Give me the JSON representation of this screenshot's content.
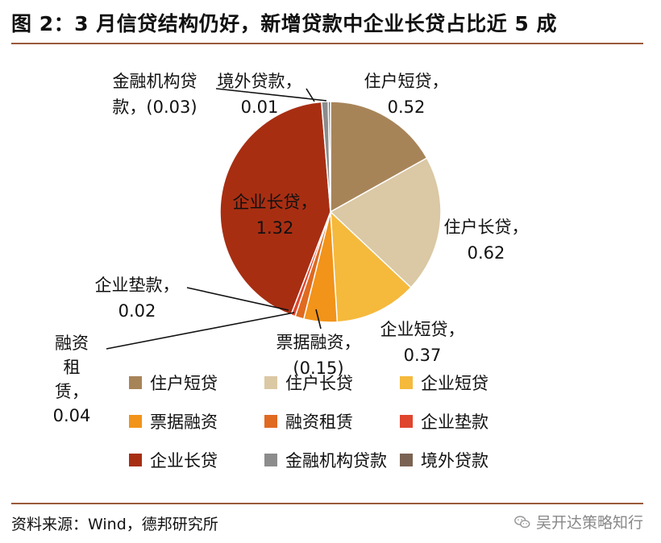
{
  "header": {
    "title": "图 2：3 月信贷结构仍好，新增贷款中企业长贷占比近 5 成"
  },
  "footer": {
    "source": "资料来源：Wind，德邦研究所",
    "watermark": "吴开达策略知行"
  },
  "chart_data": {
    "type": "pie",
    "title": "",
    "slices": [
      {
        "name": "住户短贷",
        "value": 0.52,
        "color": "#A78458"
      },
      {
        "name": "住户长贷",
        "value": 0.62,
        "color": "#DBC8A4"
      },
      {
        "name": "企业短贷",
        "value": 0.37,
        "color": "#F5B93C"
      },
      {
        "name": "票据融资",
        "value": -0.15,
        "color": "#F2931A"
      },
      {
        "name": "融资租赁",
        "value": 0.04,
        "color": "#E06A20"
      },
      {
        "name": "企业垫款",
        "value": 0.02,
        "color": "#E0452E"
      },
      {
        "name": "企业长贷",
        "value": 1.32,
        "color": "#A82E12"
      },
      {
        "name": "金融机构贷款",
        "value": -0.03,
        "color": "#8C8C8C"
      },
      {
        "name": "境外贷款",
        "value": 0.01,
        "color": "#7A6353"
      }
    ],
    "data_labels": [
      {
        "name": "住户短贷",
        "line1": "住户短贷，",
        "line2": "0.52"
      },
      {
        "name": "住户长贷",
        "line1": "住户长贷，",
        "line2": "0.62"
      },
      {
        "name": "企业短贷",
        "line1": "企业短贷，",
        "line2": "0.37"
      },
      {
        "name": "票据融资",
        "line1": "票据融资，",
        "line2": "(0.15)"
      },
      {
        "name": "融资租赁",
        "line1": "融资",
        "line2": "租",
        "line3": "赁，",
        "line4": "0.04"
      },
      {
        "name": "企业垫款",
        "line1": "企业垫款，",
        "line2": "0.02"
      },
      {
        "name": "企业长贷",
        "line1": "企业长贷，",
        "line2": "1.32"
      },
      {
        "name": "金融机构贷款",
        "line1": "金融机构贷",
        "line2": "款，(0.03)"
      },
      {
        "name": "境外贷款",
        "line1": "境外贷款，",
        "line2": "0.01"
      }
    ],
    "legend": [
      {
        "label": "住户短贷",
        "color": "#A78458"
      },
      {
        "label": "住户长贷",
        "color": "#DBC8A4"
      },
      {
        "label": "企业短贷",
        "color": "#F5B93C"
      },
      {
        "label": "票据融资",
        "color": "#F2931A"
      },
      {
        "label": "融资租赁",
        "color": "#E06A20"
      },
      {
        "label": "企业垫款",
        "color": "#E0452E"
      },
      {
        "label": "企业长贷",
        "color": "#A82E12"
      },
      {
        "label": "金融机构贷款",
        "color": "#8C8C8C"
      },
      {
        "label": "境外贷款",
        "color": "#7A6353"
      }
    ],
    "legend_position": "bottom"
  }
}
